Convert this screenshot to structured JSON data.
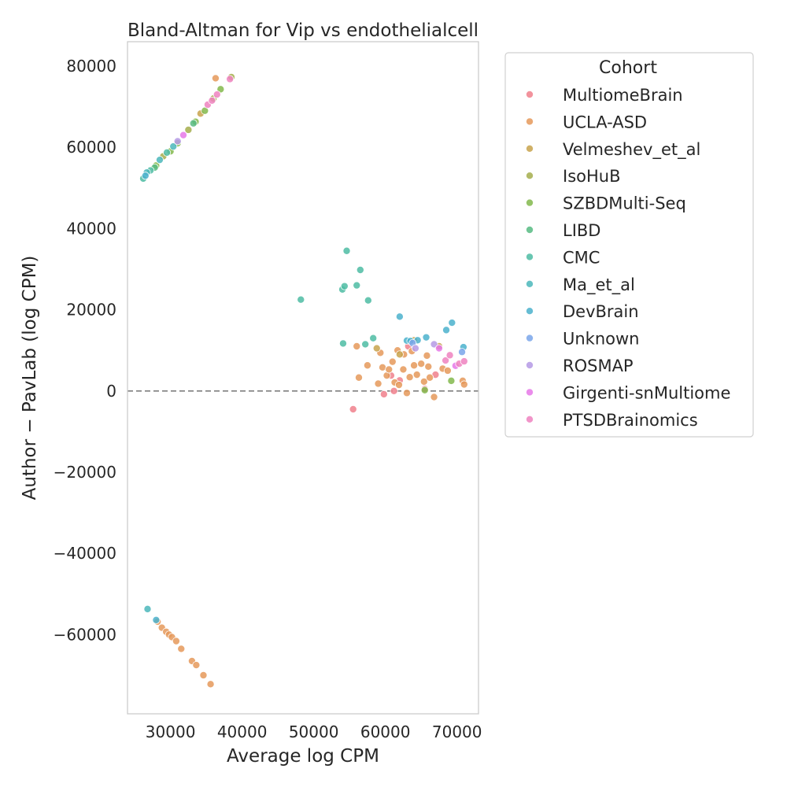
{
  "chart_data": {
    "type": "scatter",
    "title": "Bland-Altman for Vip vs endothelialcell",
    "xlabel": "Average log CPM",
    "ylabel": "Author − PavLab (log CPM)",
    "xlim": [
      24000,
      73000
    ],
    "ylim": [
      -79500,
      86000
    ],
    "xticks": [
      30000,
      40000,
      50000,
      60000,
      70000
    ],
    "xtick_labels": [
      "30000",
      "40000",
      "50000",
      "60000",
      "70000"
    ],
    "yticks": [
      80000,
      60000,
      40000,
      20000,
      0,
      -20000,
      -40000,
      -60000
    ],
    "ytick_labels": [
      "80000",
      "60000",
      "40000",
      "20000",
      "0",
      "−20000",
      "−40000",
      "−60000"
    ],
    "reference_line": 0,
    "grid": false,
    "legend": {
      "title": "Cohort",
      "placement": "outside right",
      "entries": [
        "MultiomeBrain",
        "UCLA-ASD",
        "Velmeshev_et_al",
        "IsoHuB",
        "SZBDMulti-Seq",
        "LIBD",
        "CMC",
        "Ma_et_al",
        "DevBrain",
        "Unknown",
        "ROSMAP",
        "Girgenti-snMultiome",
        "PTSDBrainomics"
      ]
    },
    "series": [
      {
        "name": "MultiomeBrain",
        "color": "#f0808c",
        "points": [
          [
            55500,
            -4500
          ],
          [
            59800,
            -800
          ],
          [
            60800,
            3800
          ],
          [
            61200,
            0
          ],
          [
            62000,
            2600
          ],
          [
            63200,
            11000
          ],
          [
            65500,
            500
          ],
          [
            67000,
            4000
          ]
        ]
      },
      {
        "name": "UCLA-ASD",
        "color": "#e5995a",
        "points": [
          [
            28200,
            -56800
          ],
          [
            28800,
            -58300
          ],
          [
            29400,
            -59300
          ],
          [
            29800,
            -60000
          ],
          [
            30200,
            -60600
          ],
          [
            30800,
            -61600
          ],
          [
            31500,
            -63500
          ],
          [
            33000,
            -66500
          ],
          [
            33600,
            -67500
          ],
          [
            34600,
            -70000
          ],
          [
            35600,
            -72200
          ],
          [
            36300,
            77000
          ],
          [
            56000,
            11000
          ],
          [
            56300,
            3300
          ],
          [
            57500,
            6300
          ],
          [
            59000,
            1800
          ],
          [
            59300,
            9400
          ],
          [
            59600,
            5800
          ],
          [
            60200,
            3800
          ],
          [
            60500,
            5300
          ],
          [
            61000,
            7200
          ],
          [
            61300,
            2100
          ],
          [
            61700,
            10000
          ],
          [
            61900,
            1500
          ],
          [
            62500,
            5300
          ],
          [
            62600,
            9000
          ],
          [
            63000,
            -500
          ],
          [
            63400,
            3400
          ],
          [
            63700,
            9800
          ],
          [
            64000,
            6300
          ],
          [
            64400,
            4000
          ],
          [
            65000,
            6700
          ],
          [
            65400,
            2300
          ],
          [
            65800,
            8700
          ],
          [
            66000,
            6000
          ],
          [
            66200,
            3300
          ],
          [
            66800,
            -1500
          ],
          [
            68000,
            5500
          ],
          [
            68700,
            5000
          ],
          [
            70800,
            2500
          ],
          [
            71000,
            1600
          ]
        ]
      },
      {
        "name": "Velmeshev_et_al",
        "color": "#c8a34c",
        "points": [
          [
            34200,
            68300
          ],
          [
            64000,
            12500
          ],
          [
            62000,
            9000
          ],
          [
            58800,
            10500
          ],
          [
            67500,
            11000
          ]
        ]
      },
      {
        "name": "IsoHuB",
        "color": "#a4ae4c",
        "points": [
          [
            29000,
            57800
          ],
          [
            32500,
            64300
          ],
          [
            36000,
            72000
          ],
          [
            38500,
            77300
          ]
        ]
      },
      {
        "name": "SZBDMulti-Seq",
        "color": "#82b94c",
        "points": [
          [
            28000,
            55500
          ],
          [
            30000,
            59000
          ],
          [
            31000,
            61000
          ],
          [
            33500,
            66300
          ],
          [
            34800,
            69000
          ],
          [
            37000,
            74300
          ],
          [
            65500,
            200
          ],
          [
            69200,
            2500
          ]
        ]
      },
      {
        "name": "LIBD",
        "color": "#57bb83",
        "points": [
          [
            27800,
            55000
          ],
          [
            33200,
            65900
          ]
        ]
      },
      {
        "name": "CMC",
        "color": "#4ebca3",
        "points": [
          [
            26200,
            52300
          ],
          [
            27200,
            54300
          ],
          [
            29500,
            58700
          ],
          [
            48200,
            22500
          ],
          [
            54000,
            25000
          ],
          [
            54100,
            11700
          ],
          [
            54300,
            25800
          ],
          [
            54600,
            34500
          ],
          [
            56000,
            26000
          ],
          [
            56500,
            29800
          ],
          [
            57200,
            11500
          ],
          [
            57600,
            22300
          ],
          [
            58300,
            13000
          ]
        ]
      },
      {
        "name": "Ma_et_al",
        "color": "#4bb7bb",
        "points": [
          [
            26800,
            -53700
          ],
          [
            26700,
            53800
          ],
          [
            28500,
            56900
          ],
          [
            30400,
            60200
          ]
        ]
      },
      {
        "name": "DevBrain",
        "color": "#4bb1cd",
        "points": [
          [
            28000,
            -56400
          ],
          [
            26500,
            53000
          ],
          [
            62000,
            18300
          ],
          [
            63000,
            12400
          ],
          [
            63500,
            12300
          ],
          [
            64500,
            12500
          ],
          [
            65700,
            13200
          ],
          [
            68500,
            15000
          ],
          [
            69300,
            16800
          ],
          [
            70900,
            10800
          ]
        ]
      },
      {
        "name": "Unknown",
        "color": "#7aa6ea",
        "points": [
          [
            63800,
            11800
          ],
          [
            70700,
            9600
          ]
        ]
      },
      {
        "name": "ROSMAP",
        "color": "#b59ae5",
        "points": [
          [
            31000,
            61500
          ],
          [
            64200,
            10500
          ],
          [
            66800,
            11500
          ]
        ]
      },
      {
        "name": "Girgenti-snMultiome",
        "color": "#e678e8",
        "points": [
          [
            31800,
            63000
          ],
          [
            67500,
            10500
          ],
          [
            69800,
            6200
          ]
        ]
      },
      {
        "name": "PTSDBrainomics",
        "color": "#ef82bf",
        "points": [
          [
            35200,
            70500
          ],
          [
            35800,
            71500
          ],
          [
            36500,
            73000
          ],
          [
            38300,
            76800
          ],
          [
            68400,
            7500
          ],
          [
            69000,
            8800
          ],
          [
            70300,
            6700
          ],
          [
            71000,
            7300
          ]
        ]
      }
    ]
  }
}
